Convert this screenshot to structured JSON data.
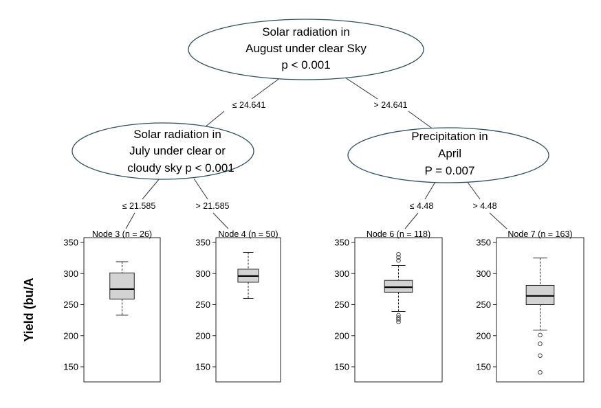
{
  "tree": {
    "nodes": [
      {
        "id": "root",
        "lines": [
          "Solar radiation in",
          "August under clear Sky",
          "p < 0.001"
        ]
      },
      {
        "id": "left",
        "lines": [
          "Solar radiation in",
          "July under clear or",
          "cloudy sky p < 0.001"
        ]
      },
      {
        "id": "right",
        "lines": [
          "Precipitation in",
          "April",
          "P = 0.007"
        ]
      }
    ],
    "edges": [
      {
        "from": "root",
        "to": "left",
        "label": "≤ 24.641"
      },
      {
        "from": "root",
        "to": "right",
        "label": "> 24.641"
      },
      {
        "from": "left",
        "to": "node3",
        "label": "≤ 21.585"
      },
      {
        "from": "left",
        "to": "node4",
        "label": "> 21.585"
      },
      {
        "from": "right",
        "to": "node6",
        "label": "≤ 4.48"
      },
      {
        "from": "right",
        "to": "node7",
        "label": "> 4.48"
      }
    ]
  },
  "ylabel": "Yield (bu/A",
  "chart_data": {
    "type": "box",
    "yticks": [
      150,
      200,
      250,
      300,
      350
    ],
    "ylim": [
      135,
      355
    ],
    "panels": [
      {
        "title": "Node 3 (n = 26)",
        "whisker_low": 233,
        "q1": 259,
        "median": 275,
        "q3": 301,
        "whisker_high": 319,
        "outliers": []
      },
      {
        "title": "Node 4 (n = 50)",
        "whisker_low": 260,
        "q1": 286,
        "median": 296,
        "q3": 307,
        "whisker_high": 334,
        "outliers": []
      },
      {
        "title": "Node 6 (n = 118)",
        "whisker_low": 239,
        "q1": 270,
        "median": 278,
        "q3": 289,
        "whisker_high": 313,
        "outliers": [
          331,
          326,
          321,
          233,
          229,
          226,
          222
        ]
      },
      {
        "title": "Node 7 (n = 163)",
        "whisker_low": 209,
        "q1": 250,
        "median": 264,
        "q3": 281,
        "whisker_high": 325,
        "outliers": [
          201,
          187,
          168,
          141
        ]
      }
    ]
  }
}
